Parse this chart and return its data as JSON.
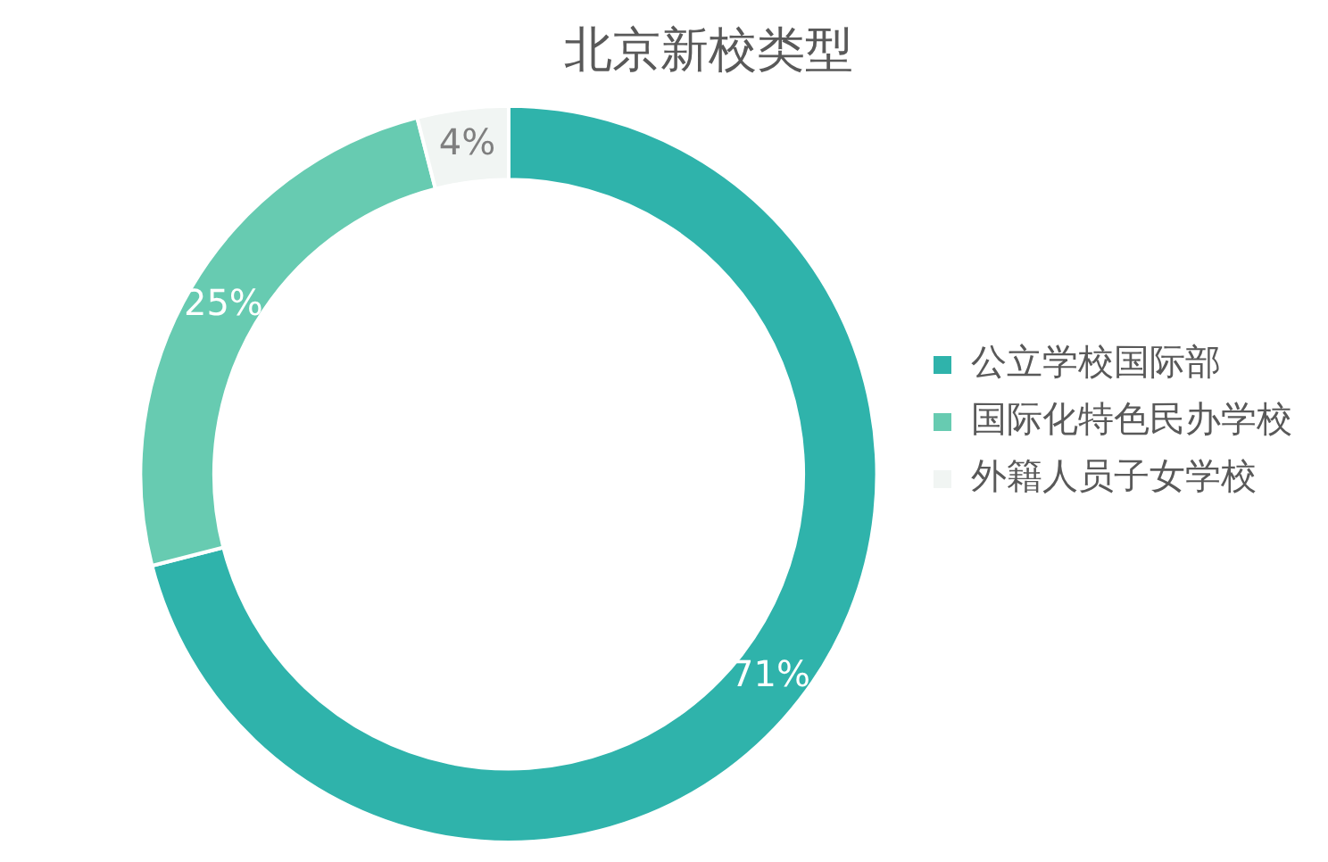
{
  "chart_data": {
    "type": "donut",
    "title": "北京新校类型",
    "categories": [
      "公立学校国际部",
      "国际化特色民办学校",
      "外籍人员子女学校"
    ],
    "values": [
      71,
      25,
      4
    ],
    "value_labels": [
      "71%",
      "25%",
      "4%"
    ],
    "colors": [
      "#2fb3ab",
      "#67cbb1",
      "#f1f5f3"
    ],
    "legend": "right"
  }
}
